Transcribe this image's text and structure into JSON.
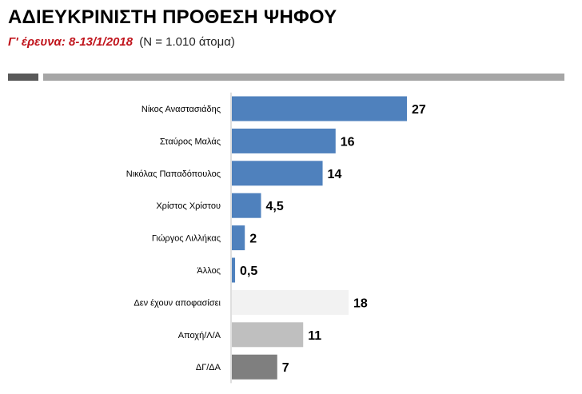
{
  "header": {
    "title": "ΑΔΙΕΥΚΡΙΝΙΣΤΗ ΠΡΟΘΕΣΗ ΨΗΦΟΥ",
    "survey": "Γ' έρευνα: 8-13/1/2018",
    "sample": "(Ν = 1.010 άτομα)"
  },
  "colors": {
    "candidate": "#4f81bd",
    "undecided": "#f2f2f2",
    "abstain": "#bfbfbf",
    "dk_na": "#7f7f7f",
    "title_accent": "#c0141c"
  },
  "chart_data": {
    "type": "bar",
    "orientation": "horizontal",
    "title": "ΑΔΙΕΥΚΡΙΝΙΣΤΗ ΠΡΟΘΕΣΗ ΨΗΦΟΥ",
    "categories": [
      "Νίκος Αναστασιάδης",
      "Σταύρος Μαλάς",
      "Νικόλας Παπαδόπουλος",
      "Χρίστος Χρίστου",
      "Γιώργος Λιλλήκας",
      "Άλλος",
      "Δεν έχουν αποφασίσει",
      "Αποχή/Λ/Α",
      "ΔΓ/ΔΑ"
    ],
    "values": [
      27,
      16,
      14,
      4.5,
      2,
      0.5,
      18,
      11,
      7
    ],
    "value_labels": [
      "27",
      "16",
      "14",
      "4,5",
      "2",
      "0,5",
      "18",
      "11",
      "7"
    ],
    "bar_colors": [
      "#4f81bd",
      "#4f81bd",
      "#4f81bd",
      "#4f81bd",
      "#4f81bd",
      "#4f81bd",
      "#f2f2f2",
      "#bfbfbf",
      "#7f7f7f"
    ],
    "xlim": [
      0,
      30
    ],
    "grid": false,
    "legend": "none"
  }
}
